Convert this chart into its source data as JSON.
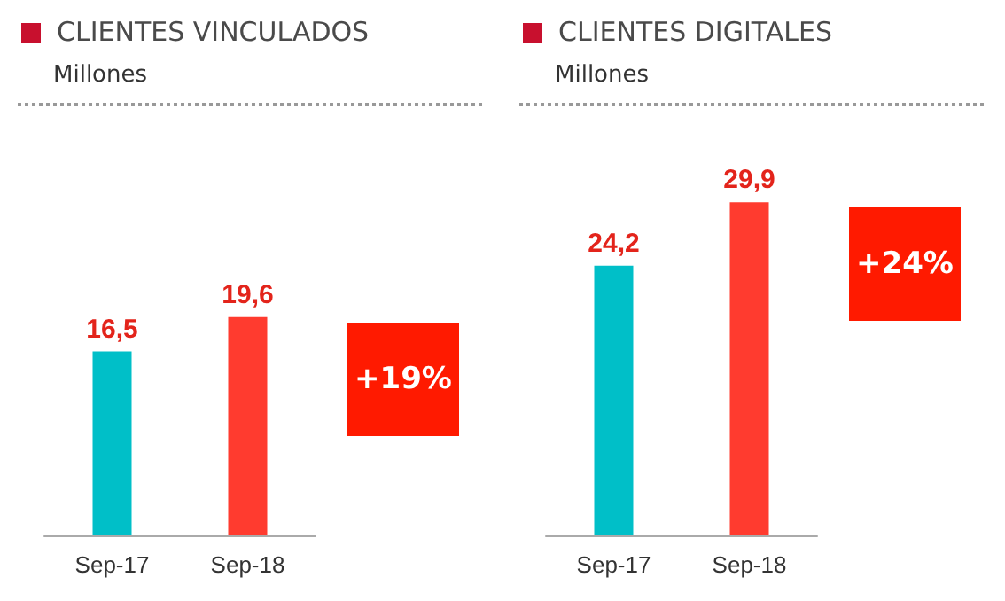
{
  "chart_data": [
    {
      "type": "bar",
      "title": "CLIENTES VINCULADOS",
      "subtitle": "Millones",
      "categories": [
        "Sep-17",
        "Sep-18"
      ],
      "values": [
        16.5,
        19.6
      ],
      "value_labels": [
        "16,5",
        "19,6"
      ],
      "colors": [
        "#00bfc8",
        "#ff3b2f"
      ],
      "annotations": [
        "+19%"
      ]
    },
    {
      "type": "bar",
      "title": "CLIENTES DIGITALES",
      "subtitle": "Millones",
      "categories": [
        "Sep-17",
        "Sep-18"
      ],
      "values": [
        24.2,
        29.9
      ],
      "value_labels": [
        "24,2",
        "29,9"
      ],
      "colors": [
        "#00bfc8",
        "#ff3b2f"
      ],
      "annotations": [
        "+24%"
      ]
    }
  ]
}
